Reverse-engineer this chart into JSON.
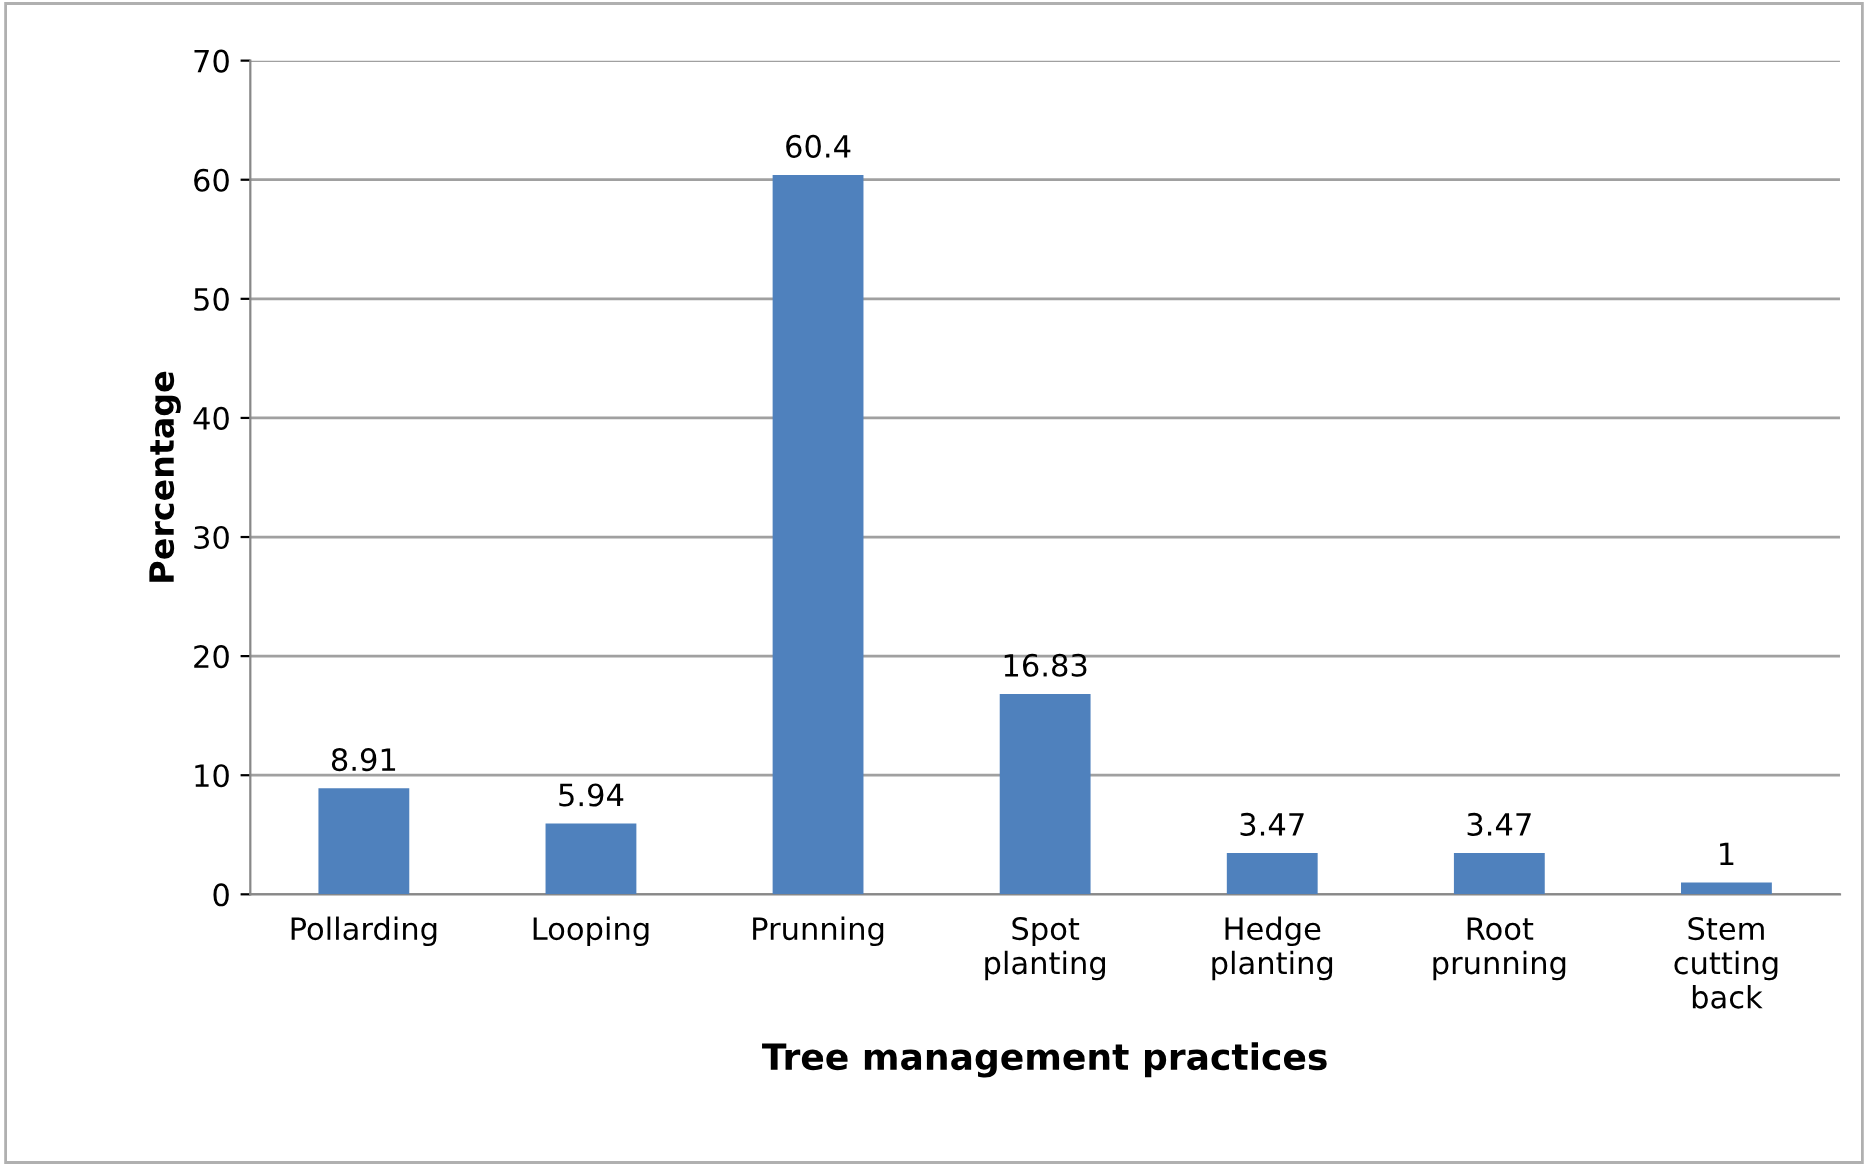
{
  "chart_data": {
    "type": "bar",
    "xlabel": "Tree management practices",
    "ylabel": "Percentage",
    "categories": [
      "Pollarding",
      "Looping",
      "Prunning",
      "Spot\nplanting",
      "Hedge\nplanting",
      "Root\nprunning",
      "Stem\ncutting\nback"
    ],
    "values": [
      8.91,
      5.94,
      60.4,
      16.83,
      3.47,
      3.47,
      1
    ],
    "color": "#4f81bd",
    "ylim": [
      0,
      70
    ],
    "yticks": [
      0,
      10,
      20,
      30,
      40,
      50,
      60,
      70
    ],
    "grid": "y",
    "data_labels": true
  }
}
